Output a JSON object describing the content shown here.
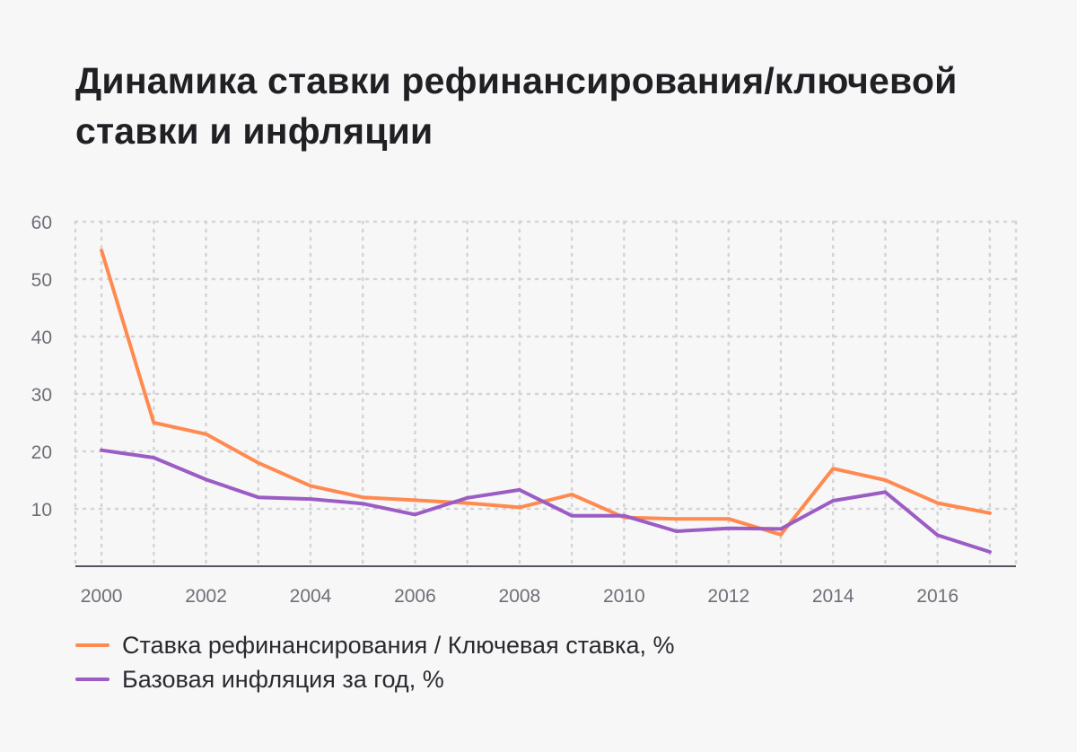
{
  "colors": {
    "background": "#f7f7f7",
    "grid": "#d3d3d8",
    "axis": "#55555f",
    "ticks": "#6e6e78"
  },
  "chart_data": {
    "type": "line",
    "title": "Динамика ставки рефинансирования/ключевой ставки и инфляции",
    "xlabel": "",
    "ylabel": "",
    "x": [
      2000,
      2001,
      2002,
      2003,
      2004,
      2005,
      2006,
      2007,
      2008,
      2009,
      2010,
      2011,
      2012,
      2013,
      2014,
      2015,
      2016,
      2017
    ],
    "xticks": [
      2000,
      2002,
      2004,
      2006,
      2008,
      2010,
      2012,
      2014,
      2016
    ],
    "xlim": [
      1999.5,
      2017.5
    ],
    "yticks": [
      10,
      20,
      30,
      40,
      50,
      60
    ],
    "ylim": [
      0,
      60
    ],
    "grid": true,
    "legend_position": "bottom-left",
    "series": [
      {
        "name": "Ставка рефинансирования / Ключевая ставка, %",
        "color": "#ff8a4f",
        "values": [
          55,
          25,
          23,
          18,
          14,
          12,
          11.5,
          11,
          10.25,
          12.5,
          8.5,
          8.25,
          8.25,
          5.5,
          17,
          15,
          11,
          9.25
        ]
      },
      {
        "name": "Базовая инфляция за год, %",
        "color": "#9b5cc4",
        "values": [
          20.2,
          18.9,
          15.1,
          12.0,
          11.7,
          10.9,
          9.0,
          11.9,
          13.3,
          8.8,
          8.8,
          6.1,
          6.6,
          6.5,
          11.4,
          12.9,
          5.4,
          2.5
        ]
      }
    ]
  }
}
